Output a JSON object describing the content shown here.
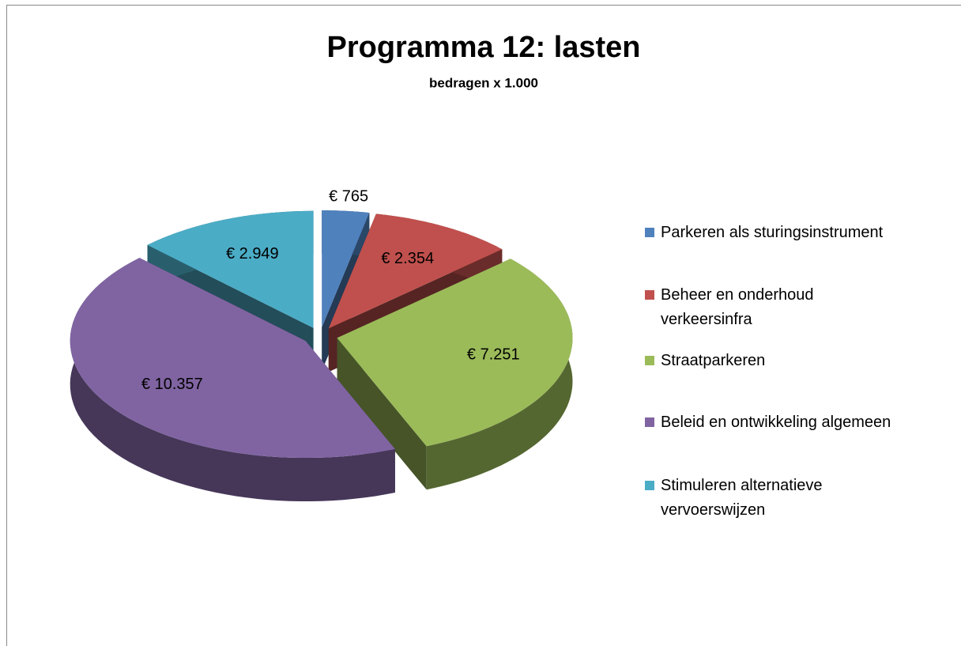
{
  "chart_data": {
    "type": "pie3d",
    "title": "Programma 12: lasten",
    "subtitle": "bedragen x 1.000",
    "categories": [
      "Parkeren als sturingsinstrument",
      "Beheer en onderhoud verkeersinfra",
      "Straatparkeren",
      "Beleid en ontwikkeling algemeen",
      "Stimuleren alternatieve vervoerswijzen"
    ],
    "values": [
      765,
      2354,
      7251,
      10357,
      2949
    ],
    "value_labels": [
      "€ 765",
      "€ 2.354",
      "€ 7.251",
      "€ 10.357",
      "€ 2.949"
    ],
    "colors": [
      "#4f81bd",
      "#c0504d",
      "#9bbb59",
      "#8064a2",
      "#4bacc6"
    ],
    "legend": "right"
  }
}
